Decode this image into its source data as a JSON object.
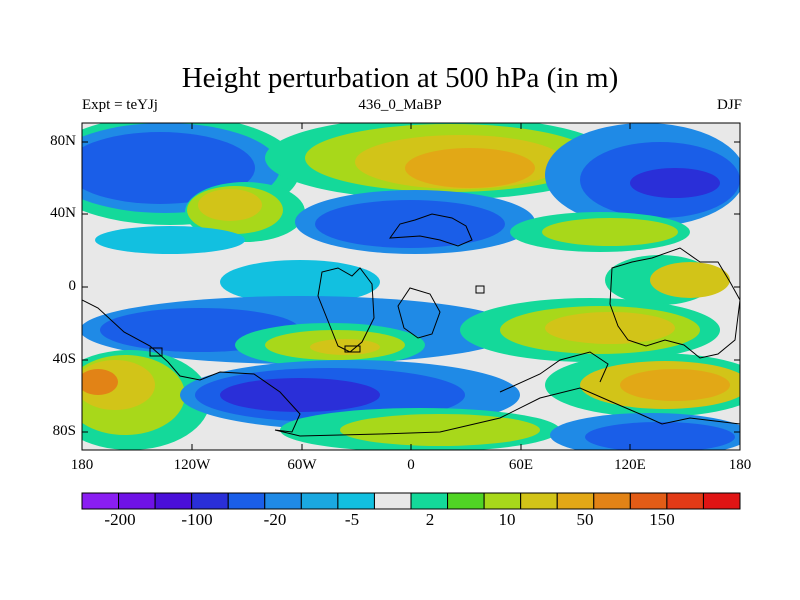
{
  "header": {
    "title": "Height perturbation at 500 hPa (in m)",
    "left_label": "Expt = teYJj",
    "center_label": "436_0_MaBP",
    "right_label": "DJF"
  },
  "map": {
    "lat_ticks": [
      "80N",
      "40N",
      "0",
      "40S",
      "80S"
    ],
    "lon_ticks": [
      "180",
      "120W",
      "60W",
      "0",
      "60E",
      "120E",
      "180"
    ]
  },
  "colorbar": {
    "colors": [
      "#8a1ef2",
      "#6f12e6",
      "#4a0fd9",
      "#2a2fd8",
      "#1a5ee8",
      "#1f8ae6",
      "#1aa8e0",
      "#12c0e0",
      "#e8e8e8",
      "#14d99a",
      "#50d424",
      "#a8d81a",
      "#d2c418",
      "#e2a816",
      "#e28316",
      "#e25c16",
      "#e23a16",
      "#e01414"
    ],
    "labels": [
      "-200",
      "-100",
      "-20",
      "-5",
      "2",
      "10",
      "50",
      "150"
    ]
  },
  "palette": {
    "neutral": "#e8e8e8",
    "deep_blue": "#2a2fd8",
    "blue": "#1a5ee8",
    "mid_blue": "#1f8ae6",
    "light_blue": "#12c0e0",
    "green": "#14d99a",
    "lime": "#a8d81a",
    "yellow": "#d2c418",
    "orange": "#e2a816",
    "dark_orange": "#e28316"
  }
}
